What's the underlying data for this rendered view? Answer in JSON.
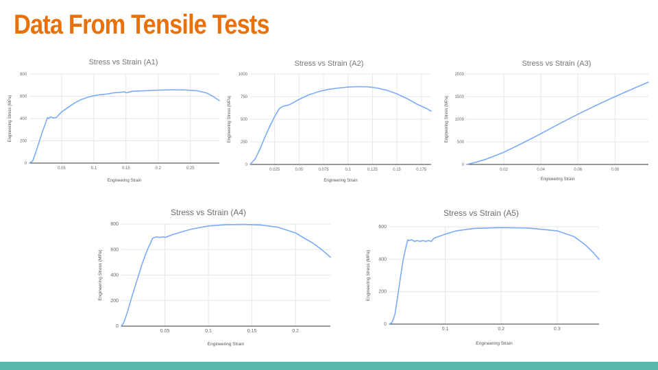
{
  "slide": {
    "title": "Data From Tensile Tests",
    "colors": {
      "title": "#e8710a",
      "series": "#7baaf7",
      "footer_bar": "#55b8a9"
    }
  },
  "chart_data": [
    {
      "id": "A1",
      "type": "line",
      "title": "Stress vs Strain (A1)",
      "xlabel": "Engineering Strain",
      "ylabel": "Engineering Stress (MPa)",
      "xlim": [
        0,
        0.295
      ],
      "ylim": [
        0,
        800
      ],
      "xticks": [
        0.05,
        0.1,
        0.15,
        0.2,
        0.25
      ],
      "xtick_labels": [
        "0.05",
        "0.1",
        "0.15",
        "0.2",
        "0.25"
      ],
      "yticks": [
        0,
        200,
        400,
        600,
        800
      ],
      "ytick_labels": [
        "0",
        "200",
        "400",
        "600",
        "800"
      ],
      "grid": true,
      "series": [
        {
          "x": [
            0,
            0.005,
            0.01,
            0.015,
            0.02,
            0.025,
            0.028,
            0.03,
            0.033,
            0.037,
            0.042,
            0.045,
            0.05,
            0.06,
            0.07,
            0.08,
            0.09,
            0.1,
            0.11,
            0.12,
            0.13,
            0.14,
            0.148,
            0.15,
            0.16,
            0.18,
            0.2,
            0.22,
            0.24,
            0.26,
            0.275,
            0.285,
            0.295
          ],
          "y": [
            0,
            20,
            100,
            190,
            280,
            360,
            410,
            400,
            415,
            405,
            410,
            430,
            460,
            500,
            540,
            570,
            590,
            605,
            615,
            620,
            630,
            635,
            640,
            630,
            645,
            650,
            655,
            658,
            657,
            650,
            630,
            600,
            560
          ]
        }
      ]
    },
    {
      "id": "A2",
      "type": "line",
      "title": "Stress vs Strain (A2)",
      "xlabel": "Engineering Strain",
      "ylabel": "Engineering Stress (MPa)",
      "xlim": [
        0,
        0.185
      ],
      "ylim": [
        0,
        1000
      ],
      "xticks": [
        0.025,
        0.05,
        0.075,
        0.1,
        0.125,
        0.15,
        0.175
      ],
      "xtick_labels": [
        "0.025",
        "0.05",
        "0.075",
        "0.1",
        "0.125",
        "0.15",
        "0.175"
      ],
      "yticks": [
        0,
        250,
        500,
        750,
        1000
      ],
      "ytick_labels": [
        "0",
        "250",
        "500",
        "750",
        "1000"
      ],
      "grid": true,
      "series": [
        {
          "x": [
            0,
            0.005,
            0.01,
            0.015,
            0.02,
            0.025,
            0.03,
            0.033,
            0.04,
            0.05,
            0.06,
            0.07,
            0.08,
            0.09,
            0.1,
            0.11,
            0.12,
            0.13,
            0.14,
            0.15,
            0.16,
            0.17,
            0.18,
            0.185
          ],
          "y": [
            0,
            60,
            170,
            300,
            420,
            530,
            620,
            640,
            660,
            720,
            770,
            805,
            830,
            845,
            855,
            860,
            858,
            845,
            820,
            780,
            730,
            670,
            620,
            590
          ]
        }
      ]
    },
    {
      "id": "A3",
      "type": "line",
      "title": "Stress vs Strain (A3)",
      "xlabel": "Engineering Strain",
      "ylabel": "Engineering Stress (MPa)",
      "xlim": [
        0,
        0.098
      ],
      "ylim": [
        0,
        2000
      ],
      "xticks": [
        0.02,
        0.04,
        0.06,
        0.08
      ],
      "xtick_labels": [
        "0.02",
        "0.04",
        "0.06",
        "0.08"
      ],
      "yticks": [
        0,
        500,
        1000,
        1500,
        2000
      ],
      "ytick_labels": [
        "0",
        "500",
        "1000",
        "1500",
        "2000"
      ],
      "grid": true,
      "series": [
        {
          "x": [
            0,
            0.005,
            0.01,
            0.02,
            0.03,
            0.04,
            0.05,
            0.06,
            0.07,
            0.08,
            0.09,
            0.098
          ],
          "y": [
            0,
            50,
            110,
            270,
            470,
            680,
            900,
            1110,
            1310,
            1500,
            1680,
            1820
          ]
        }
      ]
    },
    {
      "id": "A4",
      "type": "line",
      "title": "Stress vs Strain (A4)",
      "xlabel": "Engineering Strain",
      "ylabel": "Engineering Stress (MPa)",
      "xlim": [
        0,
        0.24
      ],
      "ylim": [
        0,
        800
      ],
      "xticks": [
        0.05,
        0.1,
        0.15,
        0.2
      ],
      "xtick_labels": [
        "0.05",
        "0.1",
        "0.15",
        "0.2"
      ],
      "yticks": [
        0,
        200,
        400,
        600,
        800
      ],
      "ytick_labels": [
        "0",
        "200",
        "400",
        "600",
        "800"
      ],
      "grid": true,
      "series": [
        {
          "x": [
            0,
            0.003,
            0.007,
            0.012,
            0.018,
            0.024,
            0.03,
            0.036,
            0.038,
            0.041,
            0.044,
            0.048,
            0.05,
            0.06,
            0.08,
            0.1,
            0.12,
            0.14,
            0.16,
            0.18,
            0.2,
            0.21,
            0.22,
            0.23,
            0.24
          ],
          "y": [
            0,
            30,
            110,
            230,
            360,
            490,
            600,
            690,
            695,
            700,
            695,
            700,
            695,
            720,
            760,
            785,
            795,
            797,
            793,
            775,
            730,
            690,
            650,
            600,
            540
          ]
        }
      ]
    },
    {
      "id": "A5",
      "type": "line",
      "title": "Stress vs Strain (A5)",
      "xlabel": "Engineering Strain",
      "ylabel": "Engineering Stress (MPa)",
      "xlim": [
        0,
        0.375
      ],
      "ylim": [
        0,
        600
      ],
      "xticks": [
        0.1,
        0.2,
        0.3
      ],
      "xtick_labels": [
        "0.1",
        "0.2",
        "0.3"
      ],
      "yticks": [
        0,
        200,
        400,
        600
      ],
      "ytick_labels": [
        "0",
        "200",
        "400",
        "600"
      ],
      "grid": true,
      "series": [
        {
          "x": [
            0,
            0.005,
            0.01,
            0.015,
            0.02,
            0.025,
            0.03,
            0.033,
            0.035,
            0.04,
            0.045,
            0.05,
            0.055,
            0.06,
            0.065,
            0.07,
            0.075,
            0.08,
            0.1,
            0.12,
            0.15,
            0.2,
            0.25,
            0.3,
            0.33,
            0.35,
            0.365,
            0.375
          ],
          "y": [
            0,
            10,
            60,
            170,
            290,
            400,
            480,
            520,
            515,
            520,
            510,
            515,
            510,
            515,
            510,
            515,
            510,
            530,
            555,
            575,
            590,
            595,
            592,
            575,
            540,
            490,
            440,
            400
          ]
        }
      ]
    }
  ]
}
